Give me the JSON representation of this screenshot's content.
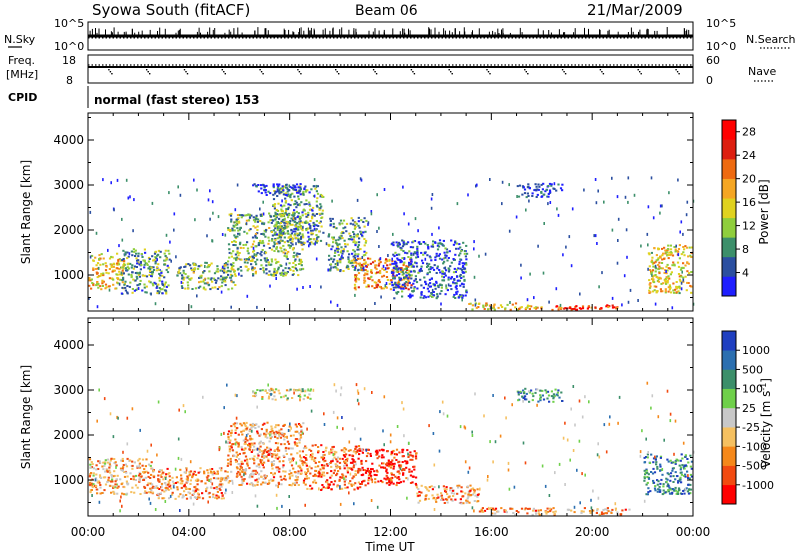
{
  "header": {
    "station": "Syowa South (fitACF)",
    "beam": "Beam 06",
    "date": "21/Mar/2009"
  },
  "panels": {
    "nsky": {
      "left_label": "N.Sky",
      "left_ticks": [
        "10^5",
        "10^0"
      ],
      "right_ticks": [
        "10^5",
        "10^0"
      ],
      "right_label": "N.Search"
    },
    "freq": {
      "left_label_1": "Freq.",
      "left_label_2": "[MHz]",
      "left_ticks": [
        "18",
        "8"
      ],
      "right_ticks": [
        "60",
        "0"
      ],
      "right_label": "Nave"
    },
    "cpid": {
      "label": "CPID",
      "text": "normal (fast stereo) 153"
    }
  },
  "colors": {
    "power_scale": [
      "#1f1fff",
      "#2b4fa0",
      "#3c8f6a",
      "#8fce3c",
      "#e0d21f",
      "#f5a623",
      "#ee6a10",
      "#dd1f10",
      "#ff0000"
    ],
    "velocity_scale": [
      "#ff0000",
      "#f24a10",
      "#f5881a",
      "#f5c060",
      "#c8c8c8",
      "#6fd04a",
      "#3c8f6a",
      "#2b6fb0",
      "#1f3fc0"
    ]
  },
  "chart_data": [
    {
      "type": "heatmap",
      "panel": "power",
      "title": "",
      "xlabel": "Time UT",
      "ylabel": "Slant Range [km]",
      "x_ticks": [
        "00:00",
        "04:00",
        "08:00",
        "12:00",
        "16:00",
        "20:00",
        "00:00"
      ],
      "x_range_hours": [
        0,
        24
      ],
      "y_ticks": [
        1000,
        2000,
        3000,
        4000
      ],
      "ylim": [
        200,
        4600
      ],
      "colorbar": {
        "label": "Power [dB]",
        "ticks": [
          4,
          8,
          12,
          16,
          20,
          24,
          28
        ],
        "range": [
          0,
          30
        ]
      },
      "clusters": [
        {
          "t0": 0.0,
          "t1": 1.4,
          "r0": 700,
          "r1": 1500,
          "level": 0.55
        },
        {
          "t0": 1.3,
          "t1": 3.2,
          "r0": 600,
          "r1": 1600,
          "level": 0.3
        },
        {
          "t0": 3.5,
          "t1": 5.8,
          "r0": 700,
          "r1": 1300,
          "level": 0.35
        },
        {
          "t0": 5.5,
          "t1": 8.5,
          "r0": 1000,
          "r1": 2400,
          "level": 0.35
        },
        {
          "t0": 7.3,
          "t1": 9.3,
          "r0": 1700,
          "r1": 3000,
          "level": 0.3
        },
        {
          "t0": 9.5,
          "t1": 11.0,
          "r0": 1100,
          "r1": 2300,
          "level": 0.3
        },
        {
          "t0": 10.5,
          "t1": 12.8,
          "r0": 700,
          "r1": 1400,
          "level": 0.65
        },
        {
          "t0": 12.0,
          "t1": 15.0,
          "r0": 500,
          "r1": 1800,
          "level": 0.15
        },
        {
          "t0": 15.0,
          "t1": 18.0,
          "r0": 200,
          "r1": 400,
          "level": 0.55
        },
        {
          "t0": 18.3,
          "t1": 21.0,
          "r0": 200,
          "r1": 350,
          "level": 0.85
        },
        {
          "t0": 22.2,
          "t1": 24.0,
          "r0": 600,
          "r1": 1700,
          "level": 0.55
        },
        {
          "t0": 6.5,
          "t1": 8.8,
          "r0": 2800,
          "r1": 3050,
          "level": 0.08
        },
        {
          "t0": 17.0,
          "t1": 18.8,
          "r0": 2750,
          "r1": 3050,
          "level": 0.08
        }
      ]
    },
    {
      "type": "heatmap",
      "panel": "velocity",
      "title": "",
      "xlabel": "Time UT",
      "ylabel": "Slant Range [km]",
      "x_ticks": [
        "00:00",
        "04:00",
        "08:00",
        "12:00",
        "16:00",
        "20:00",
        "00:00"
      ],
      "x_range_hours": [
        0,
        24
      ],
      "y_ticks": [
        1000,
        2000,
        3000,
        4000
      ],
      "ylim": [
        200,
        4600
      ],
      "colorbar": {
        "label": "Velocity [m s^-1]",
        "ticks": [
          "1000",
          "500",
          "100",
          "25",
          "-25",
          "-100",
          "-500",
          "-1000"
        ]
      },
      "clusters": [
        {
          "t0": 0.0,
          "t1": 2.5,
          "r0": 700,
          "r1": 1500,
          "level": 0.35
        },
        {
          "t0": 2.5,
          "t1": 5.5,
          "r0": 600,
          "r1": 1300,
          "level": 0.3
        },
        {
          "t0": 5.5,
          "t1": 8.5,
          "r0": 900,
          "r1": 2300,
          "level": 0.3
        },
        {
          "t0": 8.5,
          "t1": 10.8,
          "r0": 800,
          "r1": 1800,
          "level": 0.25
        },
        {
          "t0": 10.8,
          "t1": 13.0,
          "r0": 900,
          "r1": 1700,
          "level": 0.08
        },
        {
          "t0": 13.0,
          "t1": 15.5,
          "r0": 500,
          "r1": 900,
          "level": 0.3
        },
        {
          "t0": 15.5,
          "t1": 21.5,
          "r0": 200,
          "r1": 400,
          "level": 0.3
        },
        {
          "t0": 22.0,
          "t1": 24.0,
          "r0": 700,
          "r1": 1600,
          "level": 0.8
        },
        {
          "t0": 6.5,
          "t1": 8.8,
          "r0": 2800,
          "r1": 3050,
          "level": 0.5
        },
        {
          "t0": 17.0,
          "t1": 18.8,
          "r0": 2750,
          "r1": 3050,
          "level": 0.75
        }
      ]
    }
  ]
}
